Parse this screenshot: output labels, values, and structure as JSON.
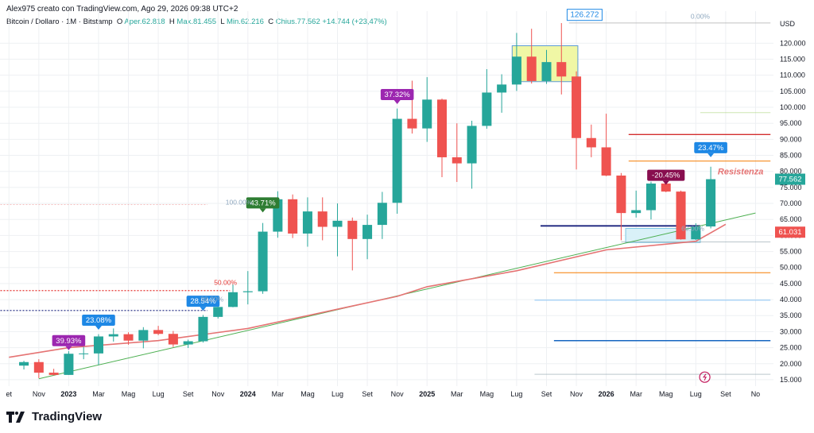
{
  "header": {
    "credit": "Alex975 creato con TradingView.com, Ago 29, 2026 09:38 UTC+2"
  },
  "legend": {
    "symbol": "Bitcoin / Dollaro · 1M · Bitstamp",
    "open_label": "O",
    "open": "Aper.62.818",
    "high_label": "H",
    "high": "Max.81.455",
    "low_label": "L",
    "low": "Min.62.216",
    "close_label": "C",
    "close": "Chius.77.562",
    "change": "+14.744 (+23,47%)"
  },
  "footer": {
    "brand": "TradingView"
  },
  "colors": {
    "up": "#26a69a",
    "down": "#ef5350",
    "grid": "#eef0f3",
    "ma": "#e57373",
    "trend": "#4caf50"
  },
  "chart_data": {
    "type": "candlestick",
    "title": "Bitcoin / Dollaro · 1M · Bitstamp",
    "currency": "USD",
    "ylim": [
      13000,
      130000
    ],
    "y_ticks": [
      {
        "v": 120000,
        "t": "120.000"
      },
      {
        "v": 115000,
        "t": "115.000"
      },
      {
        "v": 110000,
        "t": "110.000"
      },
      {
        "v": 105000,
        "t": "105.000"
      },
      {
        "v": 100000,
        "t": "100.000"
      },
      {
        "v": 95000,
        "t": "95.000"
      },
      {
        "v": 90000,
        "t": "90.000"
      },
      {
        "v": 85000,
        "t": "85.000"
      },
      {
        "v": 80000,
        "t": "80.000"
      },
      {
        "v": 75000,
        "t": "75.000"
      },
      {
        "v": 70000,
        "t": "70.000"
      },
      {
        "v": 65000,
        "t": "65.000"
      },
      {
        "v": 60000,
        "t": "60.000"
      },
      {
        "v": 55000,
        "t": "55.000"
      },
      {
        "v": 50000,
        "t": "50.000"
      },
      {
        "v": 45000,
        "t": "45.000"
      },
      {
        "v": 40000,
        "t": "40.000"
      },
      {
        "v": 35000,
        "t": "35.000"
      },
      {
        "v": 30000,
        "t": "30.000"
      },
      {
        "v": 25000,
        "t": "25.000"
      },
      {
        "v": 20000,
        "t": "20.000"
      },
      {
        "v": 15000,
        "t": "15.000"
      }
    ],
    "x_ticks": [
      {
        "i": -1,
        "t": "et",
        "bold": false
      },
      {
        "i": 1,
        "t": "Nov",
        "bold": false
      },
      {
        "i": 3,
        "t": "2023",
        "bold": true
      },
      {
        "i": 5,
        "t": "Mar",
        "bold": false
      },
      {
        "i": 7,
        "t": "Mag",
        "bold": false
      },
      {
        "i": 9,
        "t": "Lug",
        "bold": false
      },
      {
        "i": 11,
        "t": "Set",
        "bold": false
      },
      {
        "i": 13,
        "t": "Nov",
        "bold": false
      },
      {
        "i": 15,
        "t": "2024",
        "bold": true
      },
      {
        "i": 17,
        "t": "Mar",
        "bold": false
      },
      {
        "i": 19,
        "t": "Mag",
        "bold": false
      },
      {
        "i": 21,
        "t": "Lug",
        "bold": false
      },
      {
        "i": 23,
        "t": "Set",
        "bold": false
      },
      {
        "i": 25,
        "t": "Nov",
        "bold": false
      },
      {
        "i": 27,
        "t": "2025",
        "bold": true
      },
      {
        "i": 29,
        "t": "Mar",
        "bold": false
      },
      {
        "i": 31,
        "t": "Mag",
        "bold": false
      },
      {
        "i": 33,
        "t": "Lug",
        "bold": false
      },
      {
        "i": 35,
        "t": "Set",
        "bold": false
      },
      {
        "i": 37,
        "t": "Nov",
        "bold": false
      },
      {
        "i": 39,
        "t": "2026",
        "bold": true
      },
      {
        "i": 41,
        "t": "Mar",
        "bold": false
      },
      {
        "i": 43,
        "t": "Mag",
        "bold": false
      },
      {
        "i": 45,
        "t": "Lug",
        "bold": false
      },
      {
        "i": 47,
        "t": "Set",
        "bold": false
      },
      {
        "i": 49,
        "t": "No",
        "bold": false
      }
    ],
    "candles": [
      {
        "d": "2022-10",
        "o": 19400,
        "h": 20900,
        "l": 18200,
        "c": 20500
      },
      {
        "d": "2022-11",
        "o": 20500,
        "h": 21400,
        "l": 15500,
        "c": 17200
      },
      {
        "d": "2022-12",
        "o": 17200,
        "h": 18400,
        "l": 16300,
        "c": 16500
      },
      {
        "d": "2023-01",
        "o": 16500,
        "h": 23900,
        "l": 16500,
        "c": 23100
      },
      {
        "d": "2023-02",
        "o": 23100,
        "h": 25200,
        "l": 21400,
        "c": 23200
      },
      {
        "d": "2023-03",
        "o": 23200,
        "h": 29200,
        "l": 19600,
        "c": 28500
      },
      {
        "d": "2023-04",
        "o": 28500,
        "h": 31000,
        "l": 26900,
        "c": 29200
      },
      {
        "d": "2023-05",
        "o": 29200,
        "h": 29800,
        "l": 25900,
        "c": 27200
      },
      {
        "d": "2023-06",
        "o": 27200,
        "h": 31400,
        "l": 24800,
        "c": 30500
      },
      {
        "d": "2023-07",
        "o": 30500,
        "h": 31800,
        "l": 28900,
        "c": 29300
      },
      {
        "d": "2023-08",
        "o": 29300,
        "h": 30200,
        "l": 25200,
        "c": 26000
      },
      {
        "d": "2023-09",
        "o": 26000,
        "h": 27500,
        "l": 24900,
        "c": 27000
      },
      {
        "d": "2023-10",
        "o": 27000,
        "h": 35200,
        "l": 26600,
        "c": 34600
      },
      {
        "d": "2023-11",
        "o": 34600,
        "h": 38400,
        "l": 34100,
        "c": 37700
      },
      {
        "d": "2023-12",
        "o": 37700,
        "h": 44700,
        "l": 37600,
        "c": 42300
      },
      {
        "d": "2024-01",
        "o": 42300,
        "h": 48900,
        "l": 38500,
        "c": 42600
      },
      {
        "d": "2024-02",
        "o": 42600,
        "h": 63900,
        "l": 41800,
        "c": 61200
      },
      {
        "d": "2024-03",
        "o": 61200,
        "h": 73800,
        "l": 59300,
        "c": 71300
      },
      {
        "d": "2024-04",
        "o": 71300,
        "h": 72800,
        "l": 59200,
        "c": 60600
      },
      {
        "d": "2024-05",
        "o": 60600,
        "h": 71900,
        "l": 56500,
        "c": 67500
      },
      {
        "d": "2024-06",
        "o": 67500,
        "h": 71900,
        "l": 58500,
        "c": 62700
      },
      {
        "d": "2024-07",
        "o": 62700,
        "h": 70000,
        "l": 53500,
        "c": 64600
      },
      {
        "d": "2024-08",
        "o": 64600,
        "h": 65600,
        "l": 49100,
        "c": 58900
      },
      {
        "d": "2024-09",
        "o": 58900,
        "h": 66500,
        "l": 52600,
        "c": 63300
      },
      {
        "d": "2024-10",
        "o": 63300,
        "h": 73600,
        "l": 58900,
        "c": 70200
      },
      {
        "d": "2024-11",
        "o": 70200,
        "h": 99600,
        "l": 66800,
        "c": 96400
      },
      {
        "d": "2024-12",
        "o": 96400,
        "h": 108300,
        "l": 91800,
        "c": 93400
      },
      {
        "d": "2025-01",
        "o": 93400,
        "h": 109400,
        "l": 89200,
        "c": 102400
      },
      {
        "d": "2025-02",
        "o": 102400,
        "h": 102700,
        "l": 78200,
        "c": 84400
      },
      {
        "d": "2025-03",
        "o": 84400,
        "h": 95000,
        "l": 76700,
        "c": 82500
      },
      {
        "d": "2025-04",
        "o": 82500,
        "h": 95800,
        "l": 74600,
        "c": 94200
      },
      {
        "d": "2025-05",
        "o": 94200,
        "h": 111900,
        "l": 93300,
        "c": 104600
      },
      {
        "d": "2025-06",
        "o": 104600,
        "h": 110300,
        "l": 98300,
        "c": 107100
      },
      {
        "d": "2025-07",
        "o": 107100,
        "h": 123200,
        "l": 105100,
        "c": 115800
      },
      {
        "d": "2025-08",
        "o": 115800,
        "h": 124500,
        "l": 107400,
        "c": 108200
      },
      {
        "d": "2025-09",
        "o": 108200,
        "h": 117900,
        "l": 107300,
        "c": 114100
      },
      {
        "d": "2025-10",
        "o": 114100,
        "h": 126272,
        "l": 104000,
        "c": 109600
      },
      {
        "d": "2025-11",
        "o": 109600,
        "h": 111200,
        "l": 80600,
        "c": 90400
      },
      {
        "d": "2025-12",
        "o": 90400,
        "h": 94600,
        "l": 84400,
        "c": 87500
      },
      {
        "d": "2026-01",
        "o": 87500,
        "h": 98000,
        "l": 78500,
        "c": 78700
      },
      {
        "d": "2026-02",
        "o": 78700,
        "h": 79500,
        "l": 58500,
        "c": 67000
      },
      {
        "d": "2026-03",
        "o": 67000,
        "h": 74000,
        "l": 65600,
        "c": 67900
      },
      {
        "d": "2026-04",
        "o": 67900,
        "h": 76800,
        "l": 65000,
        "c": 76200
      },
      {
        "d": "2026-05",
        "o": 76200,
        "h": 80000,
        "l": 73500,
        "c": 73700
      },
      {
        "d": "2026-06",
        "o": 73700,
        "h": 74000,
        "l": 58700,
        "c": 58800
      },
      {
        "d": "2026-07",
        "o": 58800,
        "h": 63800,
        "l": 58600,
        "c": 62818
      },
      {
        "d": "2026-08",
        "o": 62818,
        "h": 81455,
        "l": 62216,
        "c": 77562
      }
    ],
    "moving_average": [
      {
        "i": -1,
        "v": 22000
      },
      {
        "i": 3,
        "v": 25000
      },
      {
        "i": 9,
        "v": 27200
      },
      {
        "i": 15,
        "v": 31000
      },
      {
        "i": 21,
        "v": 37000
      },
      {
        "i": 25,
        "v": 41000
      },
      {
        "i": 27,
        "v": 44000
      },
      {
        "i": 33,
        "v": 49000
      },
      {
        "i": 39,
        "v": 55500
      },
      {
        "i": 45,
        "v": 58200
      },
      {
        "i": 47,
        "v": 63500
      }
    ],
    "trendline": [
      {
        "i": 1,
        "v": 15300
      },
      {
        "i": 49,
        "v": 67000
      }
    ],
    "horizontal_levels": [
      {
        "v": 91500,
        "i0": 40.5,
        "i1": 50,
        "color": "#d32f2f",
        "w": 1.3
      },
      {
        "v": 83200,
        "i0": 40.5,
        "i1": 50,
        "color": "#f57c00",
        "w": 1
      },
      {
        "v": 63000,
        "i0": 34.6,
        "i1": 45.3,
        "color": "#1a237e",
        "w": 1.8
      },
      {
        "v": 48400,
        "i0": 35.5,
        "i1": 50,
        "color": "#f57c00",
        "w": 1
      },
      {
        "v": 39800,
        "i0": 34.2,
        "i1": 50,
        "color": "#64b5f6",
        "w": 0.8
      },
      {
        "v": 27200,
        "i0": 35.5,
        "i1": 50,
        "color": "#1565c0",
        "w": 1.5
      },
      {
        "v": 126300,
        "i0": 36.5,
        "i1": 50,
        "color": "#9e9e9e",
        "w": 0.6
      },
      {
        "v": 98300,
        "i0": 45.3,
        "i1": 50,
        "color": "#9ccc65",
        "w": 0.6
      },
      {
        "v": 58000,
        "i0": 40,
        "i1": 50,
        "color": "#90a4ae",
        "w": 0.6
      },
      {
        "v": 16700,
        "i0": 34.2,
        "i1": 50,
        "color": "#90a4ae",
        "w": 0.6
      },
      {
        "v": 42800,
        "i0": -2,
        "i1": 13.8,
        "color": "#e53935",
        "w": 1.2,
        "dash": true
      },
      {
        "v": 36600,
        "i0": -2,
        "i1": 12.3,
        "color": "#1a237e",
        "w": 1.2,
        "dash": true
      },
      {
        "v": 69600,
        "i0": -2,
        "i1": 12.3,
        "color": "#ef9a9a",
        "w": 0.6,
        "dash": true
      }
    ],
    "zones": [
      {
        "i0": 32.7,
        "i1": 37.1,
        "v0": 108000,
        "v1": 119200,
        "fill": "#f0f7a5",
        "stroke": "#5c9bd6"
      },
      {
        "i0": 40.3,
        "i1": 45.3,
        "v0": 57800,
        "v1": 62200,
        "fill": "#d9f1f8",
        "stroke": "#7fc7e3"
      }
    ],
    "badges": [
      {
        "i": 3,
        "v": 25200,
        "text": "39.93%",
        "color": "#9c27b0"
      },
      {
        "i": 5,
        "v": 31600,
        "text": "23.08%",
        "color": "#1e88e5"
      },
      {
        "i": 12,
        "v": 37500,
        "text": "28.54%",
        "color": "#1e88e5"
      },
      {
        "i": 16,
        "v": 68200,
        "text": "43.71%",
        "color": "#2e7d32"
      },
      {
        "i": 25,
        "v": 102000,
        "text": "37.32%",
        "color": "#9c27b0"
      },
      {
        "i": 43,
        "v": 76800,
        "text": "-20.45%",
        "color": "#880e4f"
      },
      {
        "i": 46,
        "v": 85400,
        "text": "23.47%",
        "color": "#1e88e5"
      }
    ],
    "annotations": [
      {
        "i": 36.7,
        "v": 127600,
        "text": "126.272",
        "kind": "callout"
      },
      {
        "i": 48,
        "v": 80000,
        "text": "Resistenza",
        "kind": "resistance"
      },
      {
        "i": 44.8,
        "v": 61400,
        "text": "60.00%",
        "kind": "fib"
      },
      {
        "i": 45.3,
        "v": 127600,
        "text": "0.00%",
        "kind": "fib"
      },
      {
        "i": 14.4,
        "v": 69600,
        "text": "100.00%",
        "kind": "fib"
      },
      {
        "i": 13.5,
        "v": 44600,
        "text": "50.00%",
        "kind": "fib-red"
      },
      {
        "i": 12.6,
        "v": 39400,
        "text": "38.20%",
        "kind": "fib"
      }
    ],
    "price_labels": [
      {
        "v": 77562,
        "text": "77.562",
        "color": "#26a69a"
      },
      {
        "v": 61031,
        "text": "61.031",
        "color": "#ef5350"
      }
    ]
  }
}
